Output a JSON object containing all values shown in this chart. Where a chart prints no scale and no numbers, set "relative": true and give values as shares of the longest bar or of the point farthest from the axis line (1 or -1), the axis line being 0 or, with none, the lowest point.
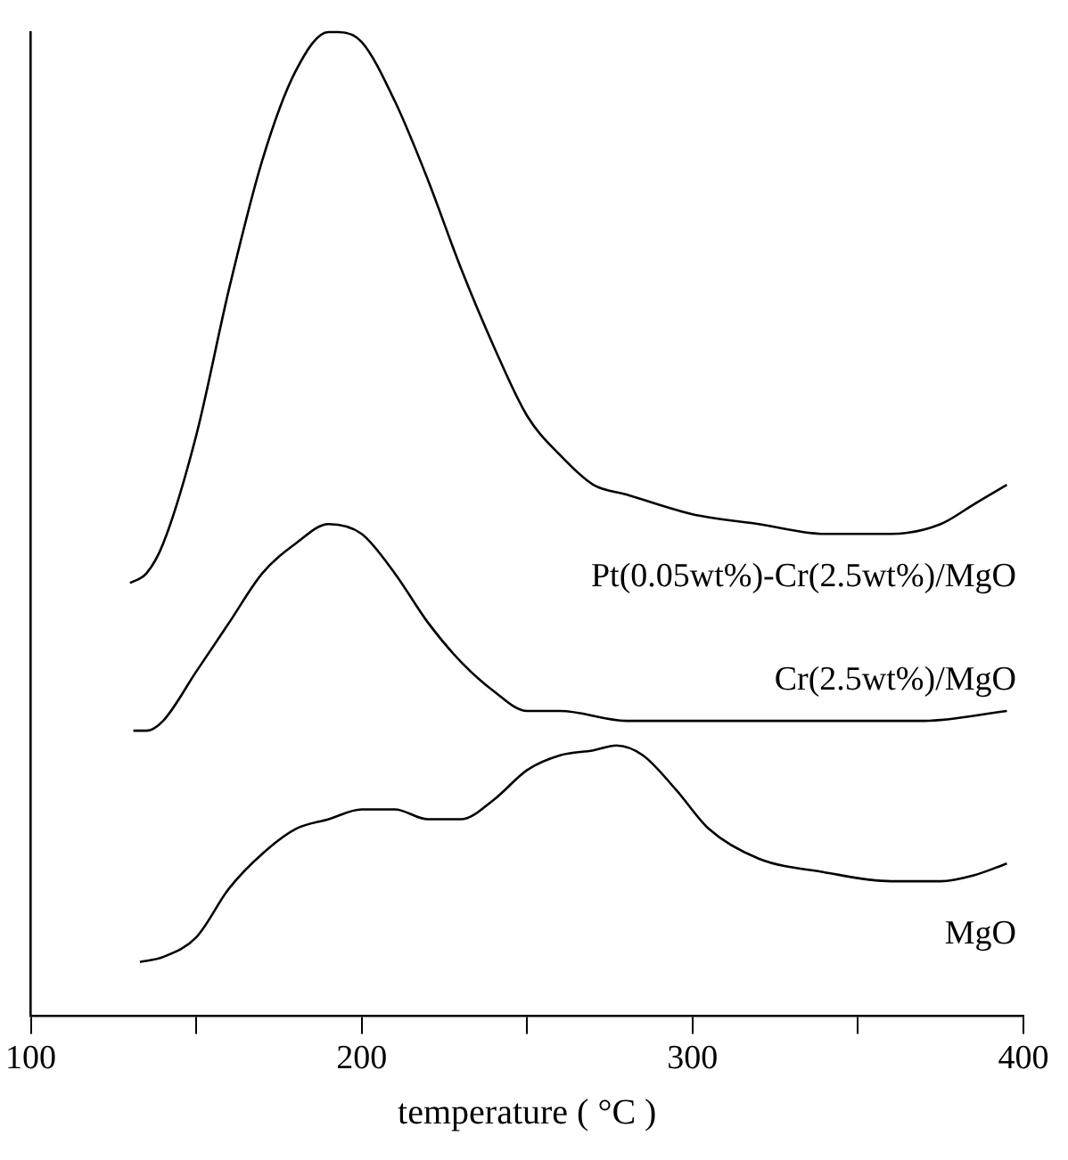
{
  "chart_data": {
    "type": "line",
    "relative": true,
    "xlabel": "temperature ( °C )",
    "xlim": [
      100,
      400
    ],
    "xticks": [
      100,
      {
        "value": 150,
        "label": null
      },
      200,
      {
        "value": 250,
        "label": null
      },
      300,
      {
        "value": 350,
        "label": null
      },
      400
    ],
    "grid": false,
    "legend": false,
    "marker": "none",
    "line_style": "solid",
    "series": [
      {
        "name": "Pt(0.05wt%)-Cr(2.5wt%)/MgO",
        "color": "#000000",
        "x": [
          130,
          135,
          140,
          150,
          160,
          170,
          180,
          190,
          193,
          200,
          210,
          220,
          230,
          240,
          250,
          260,
          270,
          280,
          300,
          320,
          340,
          350,
          360,
          375,
          385,
          395
        ],
        "values": [
          0.44,
          0.45,
          0.48,
          0.59,
          0.74,
          0.87,
          0.96,
          1.0,
          1.0,
          0.99,
          0.93,
          0.85,
          0.76,
          0.68,
          0.61,
          0.57,
          0.54,
          0.53,
          0.51,
          0.5,
          0.49,
          0.49,
          0.49,
          0.5,
          0.52,
          0.54
        ]
      },
      {
        "name": "Cr(2.5wt%)/MgO",
        "color": "#000000",
        "x": [
          131,
          135,
          140,
          150,
          160,
          170,
          180,
          190,
          200,
          210,
          220,
          230,
          240,
          250,
          260,
          280,
          300,
          330,
          350,
          370,
          395
        ],
        "values": [
          0.29,
          0.29,
          0.3,
          0.35,
          0.4,
          0.45,
          0.48,
          0.5,
          0.49,
          0.45,
          0.4,
          0.36,
          0.33,
          0.31,
          0.31,
          0.3,
          0.3,
          0.3,
          0.3,
          0.3,
          0.31
        ]
      },
      {
        "name": "MgO",
        "color": "#000000",
        "x": [
          133,
          140,
          150,
          160,
          170,
          180,
          190,
          200,
          210,
          220,
          230,
          240,
          250,
          260,
          270,
          277,
          285,
          295,
          305,
          320,
          340,
          360,
          375,
          385,
          395
        ],
        "values": [
          0.055,
          0.06,
          0.08,
          0.13,
          0.165,
          0.19,
          0.2,
          0.21,
          0.21,
          0.2,
          0.2,
          0.22,
          0.25,
          0.265,
          0.27,
          0.275,
          0.265,
          0.23,
          0.19,
          0.16,
          0.146,
          0.137,
          0.137,
          0.143,
          0.155
        ]
      }
    ]
  }
}
